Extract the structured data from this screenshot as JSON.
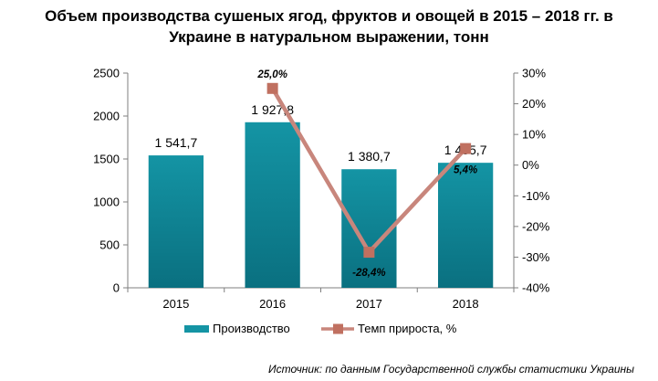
{
  "title_line1": "Объем производства сушеных ягод, фруктов и овощей в 2015 – 2018 гг. в",
  "title_line2": "Украине в натуральном выражении, тонн",
  "source": "Источник: по данным Государственной службы статистики Украины",
  "colors": {
    "bar": "#1494a4",
    "bar_dark": "#0a7080",
    "line": "#c8867c",
    "marker": "#c07060"
  },
  "chart_data": {
    "type": "bar",
    "categories": [
      "2015",
      "2016",
      "2017",
      "2018"
    ],
    "series": [
      {
        "name": "Производство",
        "type": "bar",
        "axis": "left",
        "values": [
          1541.7,
          1927.8,
          1380.7,
          1455.7
        ],
        "labels": [
          "1 541,7",
          "1 927,8",
          "1 380,7",
          "1 455,7"
        ]
      },
      {
        "name": "Темп прироста, %",
        "type": "line",
        "axis": "right",
        "values": [
          null,
          25.0,
          -28.4,
          5.4
        ],
        "labels": [
          "",
          "25,0%",
          "-28,4%",
          "5,4%"
        ]
      }
    ],
    "y_left": {
      "min": 0,
      "max": 2500,
      "ticks": [
        "0",
        "500",
        "1000",
        "1500",
        "2000",
        "2500"
      ]
    },
    "y_right": {
      "min": -40,
      "max": 30,
      "ticks": [
        "-40%",
        "-30%",
        "-20%",
        "-10%",
        "0%",
        "10%",
        "20%",
        "30%"
      ]
    },
    "legend_position": "bottom",
    "grid": false
  }
}
